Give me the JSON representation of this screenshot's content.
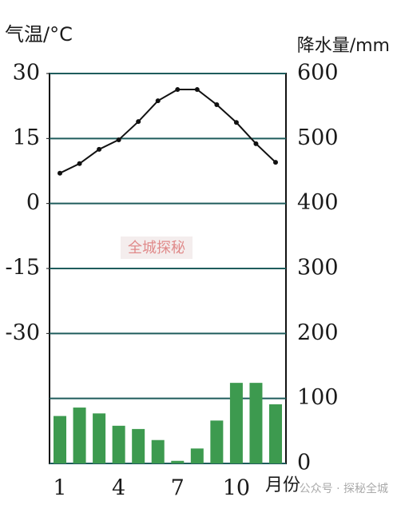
{
  "chart_data": {
    "type": "combo",
    "y_label": "气温/°C",
    "y2_label": "降水量/mm",
    "x_unit_label": "月份",
    "categories": [
      "1",
      null,
      null,
      "4",
      null,
      null,
      "7",
      null,
      null,
      "10",
      null,
      null
    ],
    "series": [
      {
        "name": "气温",
        "type": "line",
        "axis": "y",
        "color": "#111111",
        "values": [
          7,
          9.2,
          12.5,
          14.7,
          18.9,
          23.7,
          26.3,
          26.3,
          22.8,
          18.7,
          13.8,
          9.5
        ]
      },
      {
        "name": "降水量",
        "type": "bar",
        "axis": "y2",
        "color": "#3d9a4f",
        "values": [
          73,
          86,
          77,
          58,
          53,
          36,
          4,
          23,
          66,
          124,
          124,
          91
        ]
      }
    ],
    "ylim": [
      -60,
      30
    ],
    "yticks": [
      30,
      15,
      0,
      -15,
      -30
    ],
    "y2lim": [
      0,
      600
    ],
    "y2ticks": [
      0,
      100,
      200,
      300,
      400,
      500,
      600
    ],
    "grid": true,
    "grid_color": "#1f5c5c",
    "watermarks": [
      "全城探秘",
      "公众号 · 探秘全城"
    ]
  }
}
